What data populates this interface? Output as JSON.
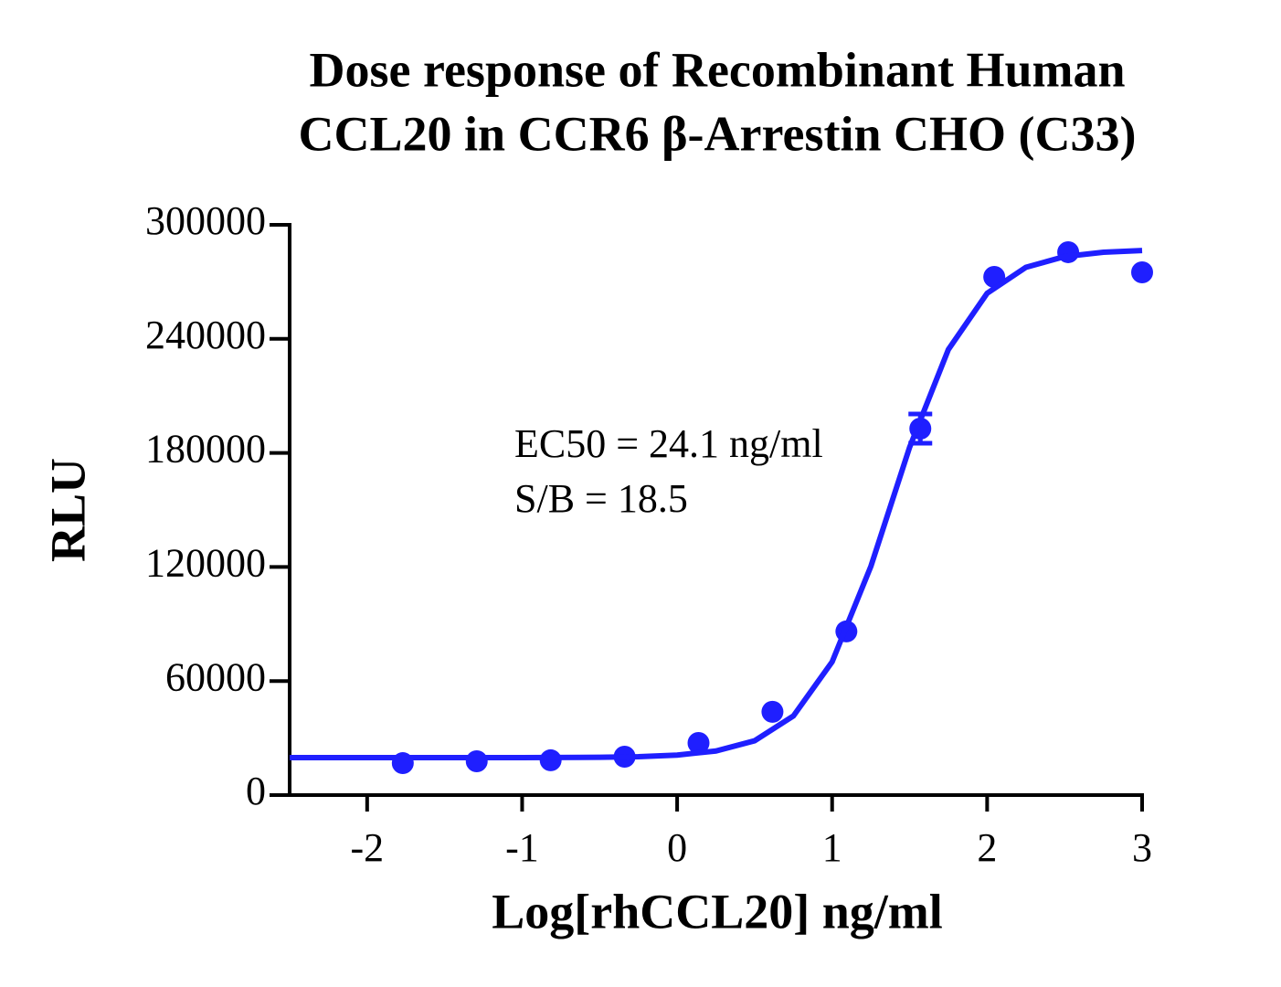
{
  "chart_data": {
    "type": "scatter",
    "title": [
      "Dose response of Recombinant Human",
      "CCL20 in CCR6 β-Arrestin CHO (C33)"
    ],
    "x_label": "Log[rhCCL20] ng/ml",
    "y_label": "RLU",
    "annotations": [
      "EC50 = 24.1 ng/ml",
      "S/B = 18.5"
    ],
    "xlim": [
      -2.5,
      3
    ],
    "ylim": [
      0,
      300000
    ],
    "xticks": [
      -2,
      -1,
      0,
      1,
      2,
      3
    ],
    "yticks": [
      0,
      60000,
      120000,
      180000,
      240000,
      300000
    ],
    "series": [
      {
        "type": "scatter",
        "color": "#1f1fff",
        "x": [
          -1.77,
          -1.293,
          -0.816,
          -0.339,
          0.138,
          0.615,
          1.092,
          1.569,
          2.046,
          2.523,
          3
        ],
        "values": [
          16800,
          17800,
          18300,
          20200,
          27400,
          43800,
          86100,
          192800,
          272600,
          285600,
          275000
        ],
        "errors": [
          null,
          null,
          null,
          null,
          null,
          null,
          null,
          7700,
          null,
          null,
          null
        ]
      },
      {
        "type": "line",
        "color": "#1f1fff",
        "x": [
          -2.5,
          -2,
          -1.5,
          -1,
          -0.5,
          -0.25,
          0,
          0.25,
          0.5,
          0.75,
          1,
          1.25,
          1.5,
          1.75,
          2,
          2.25,
          2.5,
          2.75,
          3
        ],
        "values": [
          19700,
          19700,
          19700,
          19730,
          19900,
          20220,
          21050,
          23190,
          28580,
          41610,
          70090,
          120340,
          183000,
          234400,
          264000,
          277660,
          283300,
          285570,
          286450
        ]
      }
    ]
  }
}
